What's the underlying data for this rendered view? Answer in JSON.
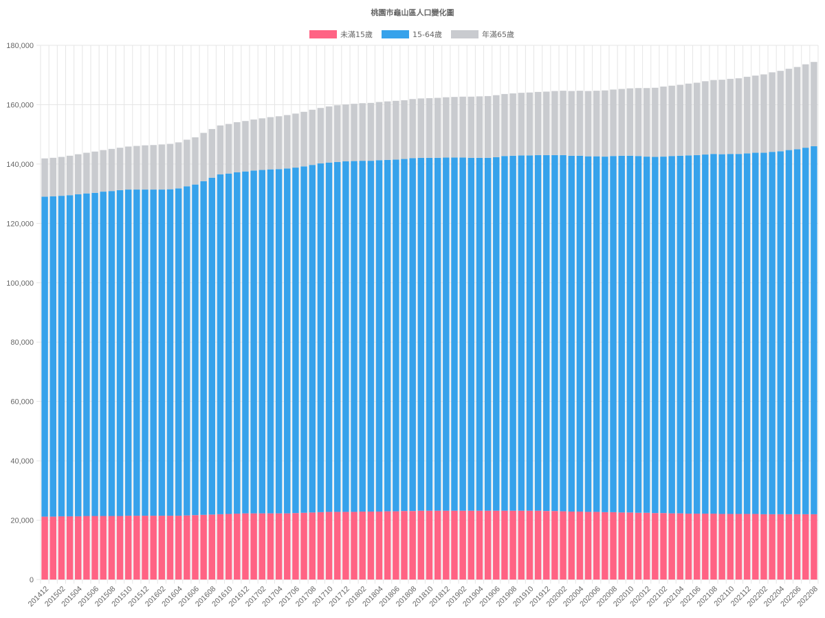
{
  "chart_data": {
    "type": "bar",
    "stacked": true,
    "title": "桃園市龜山區人口變化圖",
    "legend_position": "top",
    "grid": true,
    "ylim": [
      0,
      180000
    ],
    "y_ticks": [
      "0",
      "20,000",
      "40,000",
      "60,000",
      "80,000",
      "100,000",
      "120,000",
      "140,000",
      "160,000",
      "180,000"
    ],
    "y_tick_values": [
      0,
      20000,
      40000,
      60000,
      80000,
      100000,
      120000,
      140000,
      160000,
      180000
    ],
    "categories": [
      "201412",
      "201501",
      "201502",
      "201503",
      "201504",
      "201505",
      "201506",
      "201507",
      "201508",
      "201509",
      "201510",
      "201511",
      "201512",
      "201601",
      "201602",
      "201603",
      "201604",
      "201605",
      "201606",
      "201607",
      "201608",
      "201609",
      "201610",
      "201611",
      "201612",
      "201701",
      "201702",
      "201703",
      "201704",
      "201705",
      "201706",
      "201707",
      "201708",
      "201709",
      "201710",
      "201711",
      "201712",
      "201801",
      "201802",
      "201803",
      "201804",
      "201805",
      "201806",
      "201807",
      "201808",
      "201809",
      "201810",
      "201811",
      "201812",
      "201901",
      "201902",
      "201903",
      "201904",
      "201905",
      "201906",
      "201907",
      "201908",
      "201909",
      "201910",
      "201911",
      "201912",
      "202001",
      "202002",
      "202003",
      "202004",
      "202005",
      "202006",
      "202007",
      "202008",
      "202009",
      "202010",
      "202011",
      "202012",
      "202101",
      "202102",
      "202103",
      "202104",
      "202105",
      "202106",
      "202107",
      "202108",
      "202109",
      "202110",
      "202111",
      "202112",
      "202201",
      "202202",
      "202203",
      "202204",
      "202205",
      "202206",
      "202207",
      "202208"
    ],
    "x_tick_labels": [
      "201412",
      "201502",
      "201504",
      "201506",
      "201508",
      "201510",
      "201512",
      "201602",
      "201604",
      "201606",
      "201608",
      "201610",
      "201612",
      "201702",
      "201704",
      "201706",
      "201708",
      "201710",
      "201712",
      "201802",
      "201804",
      "201806",
      "201808",
      "201810",
      "201812",
      "201902",
      "201904",
      "201906",
      "201908",
      "201910",
      "201912",
      "202002",
      "202004",
      "202006",
      "202008",
      "202010",
      "202012",
      "202102",
      "202104",
      "202106",
      "202108",
      "202110",
      "202112",
      "202202",
      "202204",
      "202206",
      "202208"
    ],
    "series": [
      {
        "name": "未滿15歲",
        "color": "#ff6384",
        "values": [
          21200,
          21200,
          21300,
          21300,
          21300,
          21400,
          21400,
          21400,
          21400,
          21400,
          21500,
          21500,
          21500,
          21500,
          21500,
          21500,
          21500,
          21600,
          21700,
          21800,
          21900,
          22000,
          22100,
          22200,
          22300,
          22300,
          22300,
          22300,
          22300,
          22300,
          22400,
          22500,
          22600,
          22700,
          22800,
          22800,
          22800,
          22800,
          22900,
          22900,
          22900,
          23000,
          23000,
          23100,
          23100,
          23200,
          23200,
          23200,
          23200,
          23200,
          23200,
          23200,
          23200,
          23200,
          23200,
          23200,
          23200,
          23200,
          23200,
          23200,
          23100,
          23100,
          23000,
          22900,
          22900,
          22800,
          22800,
          22700,
          22700,
          22600,
          22600,
          22500,
          22500,
          22400,
          22400,
          22300,
          22300,
          22200,
          22200,
          22200,
          22200,
          22100,
          22100,
          22100,
          22100,
          22100,
          22000,
          22000,
          22000,
          22000,
          22000,
          22000,
          22000
        ]
      },
      {
        "name": "15-64歲",
        "color": "#36a2eb",
        "values": [
          107800,
          107900,
          108000,
          108200,
          108500,
          108700,
          108900,
          109300,
          109500,
          109800,
          109900,
          109900,
          109900,
          109900,
          109900,
          110000,
          110300,
          110900,
          111400,
          112400,
          113500,
          114500,
          114700,
          115000,
          115200,
          115500,
          115700,
          115900,
          116000,
          116200,
          116400,
          116700,
          117100,
          117500,
          117700,
          117900,
          118100,
          118200,
          118200,
          118200,
          118400,
          118400,
          118500,
          118600,
          118900,
          118900,
          118900,
          118900,
          119000,
          119000,
          119000,
          118900,
          118900,
          118900,
          119100,
          119500,
          119600,
          119700,
          119700,
          119800,
          119900,
          119900,
          120000,
          119900,
          119900,
          119800,
          119800,
          119800,
          120000,
          120200,
          120200,
          120200,
          120000,
          120000,
          120100,
          120400,
          120500,
          120700,
          120800,
          121000,
          121200,
          121200,
          121300,
          121300,
          121500,
          121700,
          121800,
          122100,
          122300,
          122700,
          123000,
          123500,
          124000
        ]
      },
      {
        "name": "年滿65歲",
        "color": "#c9cbcf",
        "values": [
          12900,
          13000,
          13100,
          13300,
          13500,
          13700,
          13900,
          14000,
          14200,
          14300,
          14500,
          14700,
          14900,
          15000,
          15200,
          15300,
          15500,
          15700,
          15900,
          16300,
          16400,
          16500,
          16700,
          16900,
          17000,
          17200,
          17400,
          17600,
          17800,
          18000,
          18200,
          18400,
          18600,
          18700,
          18900,
          19100,
          19200,
          19300,
          19400,
          19500,
          19600,
          19700,
          19800,
          19800,
          19900,
          20000,
          20100,
          20200,
          20300,
          20400,
          20500,
          20600,
          20700,
          20800,
          20900,
          20900,
          21000,
          21100,
          21200,
          21300,
          21400,
          21600,
          21700,
          21800,
          21900,
          22000,
          22100,
          22300,
          22400,
          22500,
          22700,
          22900,
          23100,
          23300,
          23600,
          23700,
          23900,
          24200,
          24400,
          24700,
          24900,
          25100,
          25300,
          25500,
          25800,
          26000,
          26400,
          26800,
          27100,
          27400,
          27700,
          28100,
          28400
        ]
      }
    ]
  }
}
